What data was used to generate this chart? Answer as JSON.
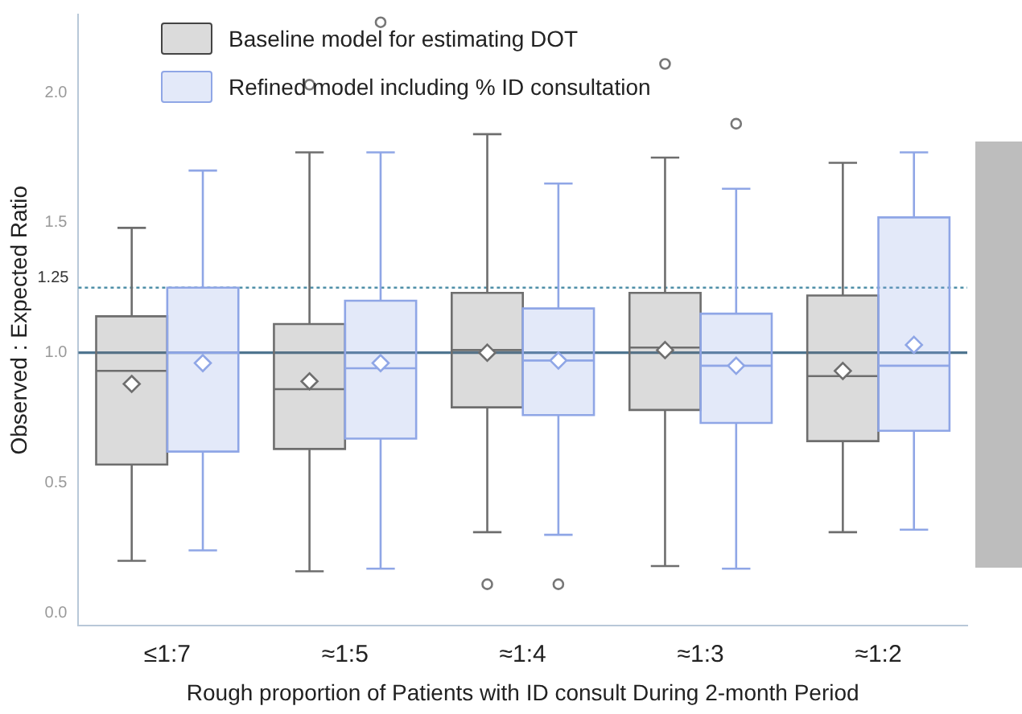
{
  "chart_data": {
    "type": "box",
    "xlabel": "Rough proportion of Patients with ID consult During 2-month Period",
    "ylabel": "Observed : Expected Ratio",
    "categories": [
      "≤1:7",
      "≈1:5",
      "≈1:4",
      "≈1:3",
      "≈1:2"
    ],
    "series": [
      {
        "name": "Baseline model for estimating DOT",
        "color": "#6e6e6e",
        "boxes": [
          {
            "low": 0.2,
            "q1": 0.57,
            "median": 0.93,
            "q3": 1.14,
            "high": 1.48,
            "mean": 0.88
          },
          {
            "low": 0.16,
            "q1": 0.63,
            "median": 0.86,
            "q3": 1.11,
            "high": 1.77,
            "mean": 0.89,
            "outliers": [
              2.03
            ]
          },
          {
            "low": 0.31,
            "q1": 0.79,
            "median": 1.01,
            "q3": 1.23,
            "high": 1.84,
            "mean": 1.0,
            "outliers": [
              0.11
            ]
          },
          {
            "low": 0.18,
            "q1": 0.78,
            "median": 1.02,
            "q3": 1.23,
            "high": 1.75,
            "mean": 1.01,
            "outliers": [
              2.11
            ]
          },
          {
            "low": 0.31,
            "q1": 0.66,
            "median": 0.91,
            "q3": 1.22,
            "high": 1.73,
            "mean": 0.93
          }
        ]
      },
      {
        "name": "Refined model including % ID consultation",
        "color": "#8fa6e6",
        "boxes": [
          {
            "low": 0.24,
            "q1": 0.62,
            "median": 1.0,
            "q3": 1.25,
            "high": 1.7,
            "mean": 0.96
          },
          {
            "low": 0.17,
            "q1": 0.67,
            "median": 0.94,
            "q3": 1.2,
            "high": 1.77,
            "mean": 0.96,
            "outliers": [
              2.27
            ]
          },
          {
            "low": 0.3,
            "q1": 0.76,
            "median": 0.97,
            "q3": 1.17,
            "high": 1.65,
            "mean": 0.97,
            "outliers": [
              0.11
            ]
          },
          {
            "low": 0.17,
            "q1": 0.73,
            "median": 0.95,
            "q3": 1.15,
            "high": 1.63,
            "mean": 0.95,
            "outliers": [
              1.88
            ]
          },
          {
            "low": 0.32,
            "q1": 0.7,
            "median": 0.95,
            "q3": 1.52,
            "high": 1.77,
            "mean": 1.03
          }
        ]
      }
    ],
    "ylim": [
      -0.05,
      2.3
    ],
    "yticks": [
      {
        "value": 0,
        "label": "0.0"
      },
      {
        "value": 0.5,
        "label": "0.5"
      },
      {
        "value": 1,
        "label": "1.0"
      },
      {
        "value": 1.5,
        "label": "1.5"
      },
      {
        "value": 2,
        "label": "2.0"
      }
    ],
    "ref_lines": [
      {
        "axis": "y",
        "value": 1.0,
        "label": null,
        "color": "#4f7590",
        "line_style": "solid"
      },
      {
        "axis": "y",
        "value": 1.25,
        "label": "1.25",
        "color": "#4f8fa8",
        "line_style": "dotted"
      }
    ],
    "grid": false,
    "legend": "top left",
    "marker": "diamond"
  }
}
